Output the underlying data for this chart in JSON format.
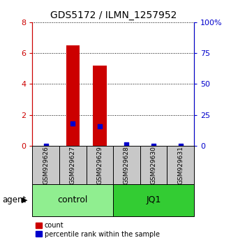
{
  "title": "GDS5172 / ILMN_1257952",
  "samples": [
    "GSM929626",
    "GSM929627",
    "GSM929629",
    "GSM929628",
    "GSM929630",
    "GSM929631"
  ],
  "counts": [
    0,
    6.5,
    5.2,
    0,
    0,
    0
  ],
  "percentile_ranks": [
    0,
    18,
    16,
    1,
    0,
    0
  ],
  "groups": [
    "control",
    "control",
    "control",
    "JQ1",
    "JQ1",
    "JQ1"
  ],
  "group_colors": {
    "control": "#90EE90",
    "JQ1": "#33CC33"
  },
  "bar_color": "#CC0000",
  "dot_color": "#0000CC",
  "ylim_left": [
    0,
    8
  ],
  "ylim_right": [
    0,
    100
  ],
  "yticks_left": [
    0,
    2,
    4,
    6,
    8
  ],
  "yticks_right": [
    0,
    25,
    50,
    75,
    100
  ],
  "yticklabels_right": [
    "0",
    "25",
    "50",
    "75",
    "100%"
  ],
  "yticklabels_left": [
    "0",
    "2",
    "4",
    "6",
    "8"
  ],
  "bar_width": 0.5,
  "dot_size": 25,
  "left_tick_color": "#CC0000",
  "right_tick_color": "#0000CC",
  "sample_box_color": "#C8C8C8",
  "legend_count_label": "count",
  "legend_pct_label": "percentile rank within the sample"
}
